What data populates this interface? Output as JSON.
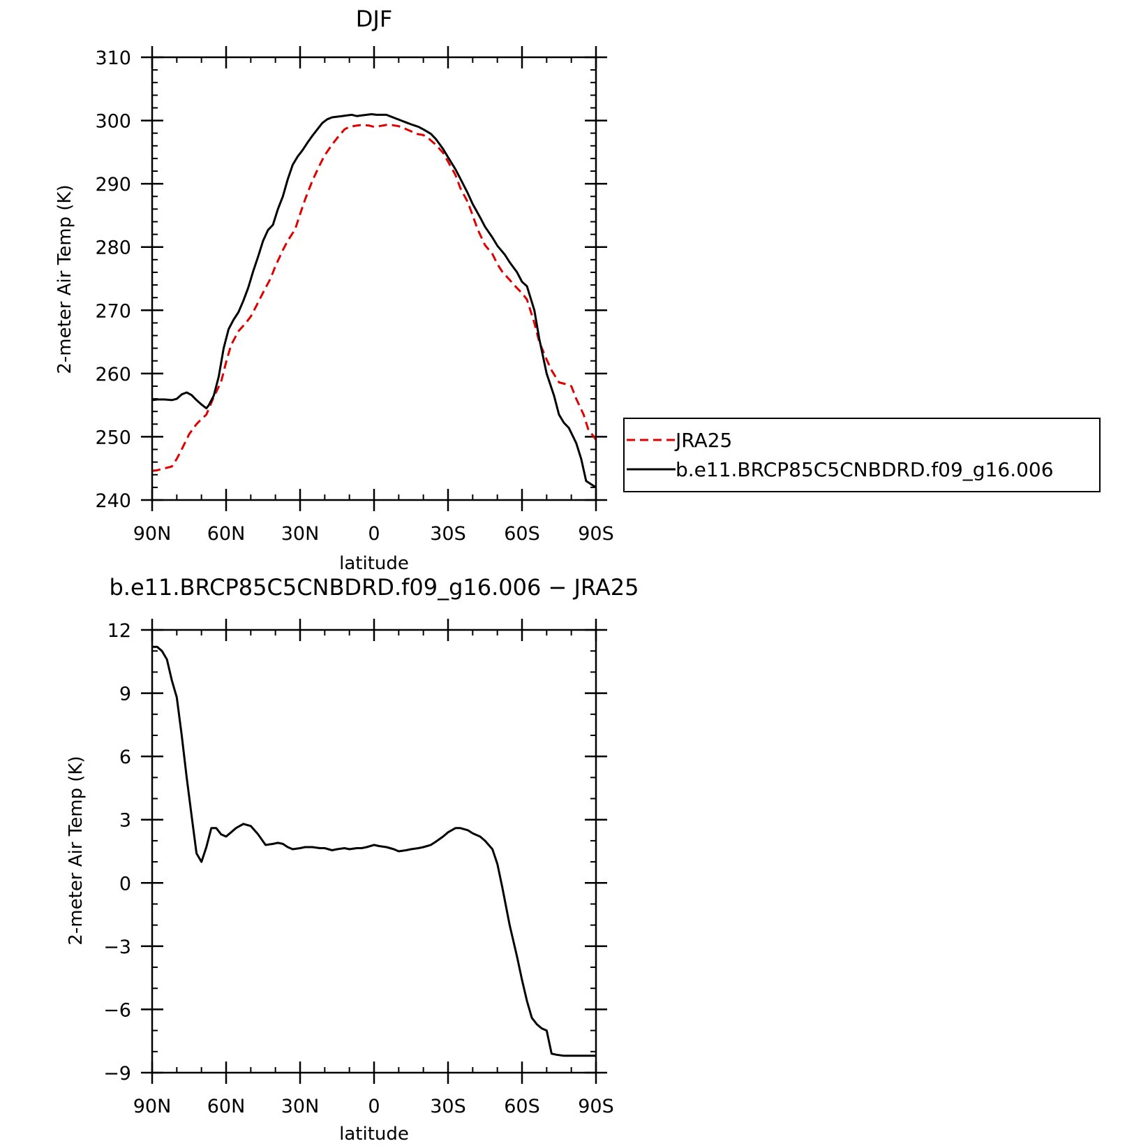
{
  "chart_data": [
    {
      "type": "line",
      "title": "DJF",
      "xlabel": "latitude",
      "ylabel": "2-meter Air Temp (K)",
      "x_tick_values": [
        90,
        60,
        30,
        0,
        -30,
        -60,
        -90
      ],
      "x_tick_labels": [
        "90N",
        "60N",
        "30N",
        "0",
        "30S",
        "60S",
        "90S"
      ],
      "xlim": [
        90,
        -90
      ],
      "ylim": [
        240,
        310
      ],
      "y_ticks": [
        240,
        250,
        260,
        270,
        280,
        290,
        300,
        310
      ],
      "y_tick_labels": [
        "240",
        "250",
        "260",
        "270",
        "280",
        "290",
        "300",
        "310"
      ],
      "grid": false,
      "legend_position": "right",
      "series": [
        {
          "name": "JRA25",
          "color": "#e00000",
          "dash": "dashed",
          "x": [
            90,
            88,
            85,
            82,
            80,
            78,
            75,
            72,
            70,
            68,
            65,
            62,
            60,
            58,
            55,
            52,
            50,
            48,
            45,
            42,
            40,
            37,
            35,
            32,
            30,
            28,
            25,
            22,
            20,
            17,
            15,
            12,
            10,
            7,
            5,
            2,
            0,
            -2,
            -5,
            -7,
            -10,
            -12,
            -15,
            -17,
            -20,
            -22,
            -25,
            -28,
            -30,
            -33,
            -35,
            -38,
            -40,
            -42,
            -45,
            -48,
            -50,
            -52,
            -55,
            -58,
            -60,
            -62,
            -65,
            -67,
            -70,
            -72,
            -75,
            -78,
            -80,
            -82,
            -85,
            -87,
            -89,
            -90
          ],
          "y": [
            244.6,
            244.7,
            245.0,
            245.3,
            246.5,
            248.0,
            250.4,
            252.0,
            252.8,
            253.5,
            256.3,
            258.7,
            261.8,
            264.5,
            266.7,
            268.0,
            269.0,
            270.5,
            272.8,
            275.0,
            277.0,
            279.5,
            281.0,
            282.8,
            285.2,
            287.5,
            290.5,
            293.0,
            294.5,
            296.2,
            297.2,
            298.6,
            299.0,
            299.2,
            299.3,
            299.2,
            299.0,
            299.1,
            299.3,
            299.3,
            299.1,
            298.8,
            298.3,
            297.9,
            297.7,
            297.2,
            296.2,
            294.9,
            293.5,
            291.4,
            289.3,
            287.1,
            285.0,
            282.8,
            280.3,
            278.9,
            277.3,
            276.1,
            274.8,
            273.5,
            272.7,
            271.7,
            268.0,
            265.0,
            262.2,
            260.5,
            258.6,
            258.3,
            258.0,
            256.0,
            253.5,
            251.0,
            250.1,
            249.5
          ]
        },
        {
          "name": "b.e11.BRCP85C5CNBDRD.f09_g16.006",
          "color": "#000000",
          "dash": "solid",
          "x": [
            90,
            88,
            85,
            82,
            80,
            78,
            76,
            74,
            72,
            70,
            68,
            67,
            65,
            63,
            61,
            59,
            57,
            55,
            53,
            51,
            49,
            47,
            45,
            43,
            41,
            39,
            37,
            35,
            33,
            31,
            29,
            27,
            25,
            23,
            21,
            19,
            17,
            15,
            13,
            11,
            9,
            7,
            5,
            3,
            1,
            -1,
            -3,
            -5,
            -7,
            -9,
            -11,
            -13,
            -15,
            -18,
            -20,
            -23,
            -25,
            -28,
            -30,
            -33,
            -35,
            -38,
            -40,
            -43,
            -45,
            -48,
            -50,
            -53,
            -55,
            -58,
            -60,
            -62,
            -65,
            -67,
            -70,
            -73,
            -75,
            -77,
            -79,
            -82,
            -84,
            -86,
            -88,
            -90
          ],
          "y": [
            255.8,
            255.9,
            255.9,
            255.8,
            256.0,
            256.7,
            257.0,
            256.6,
            255.8,
            255.1,
            254.5,
            255.0,
            256.5,
            259.5,
            264.0,
            267.0,
            268.5,
            269.7,
            271.5,
            273.6,
            276.2,
            278.5,
            281.0,
            282.7,
            283.5,
            286.0,
            288.0,
            290.7,
            293.0,
            294.3,
            295.3,
            296.5,
            297.6,
            298.6,
            299.6,
            300.2,
            300.5,
            300.6,
            300.7,
            300.8,
            300.9,
            300.7,
            300.8,
            300.9,
            301.0,
            300.9,
            300.9,
            300.9,
            300.6,
            300.3,
            300.0,
            299.7,
            299.4,
            299.0,
            298.6,
            297.9,
            297.1,
            295.5,
            294.2,
            292.3,
            290.8,
            288.5,
            286.8,
            284.7,
            283.2,
            281.5,
            280.2,
            278.8,
            277.6,
            276.0,
            274.5,
            273.8,
            270.0,
            265.5,
            260.0,
            256.5,
            253.5,
            252.2,
            251.4,
            249.0,
            246.5,
            243.0,
            242.5,
            242.0
          ]
        }
      ]
    },
    {
      "type": "line",
      "title": "b.e11.BRCP85C5CNBDRD.f09_g16.006 − JRA25",
      "xlabel": "latitude",
      "ylabel": "2-meter Air Temp (K)",
      "x_tick_values": [
        90,
        60,
        30,
        0,
        -30,
        -60,
        -90
      ],
      "x_tick_labels": [
        "90N",
        "60N",
        "30N",
        "0",
        "30S",
        "60S",
        "90S"
      ],
      "xlim": [
        90,
        -90
      ],
      "ylim": [
        -9,
        12
      ],
      "y_ticks": [
        -9,
        -6,
        -3,
        0,
        3,
        6,
        9,
        12
      ],
      "y_tick_labels": [
        "−9",
        "−6",
        "−3",
        "0",
        "3",
        "6",
        "9",
        "12"
      ],
      "grid": false,
      "series": [
        {
          "color": "#000000",
          "dash": "solid",
          "x": [
            90,
            88,
            86,
            84,
            82,
            80,
            78,
            76,
            74,
            72,
            70,
            68,
            66,
            64,
            62,
            60,
            58,
            56,
            53,
            50,
            47,
            44,
            41,
            39,
            37,
            35,
            33,
            30,
            28,
            25,
            22,
            20,
            17,
            15,
            12,
            10,
            7,
            5,
            3,
            0,
            -2,
            -5,
            -8,
            -10,
            -13,
            -15,
            -18,
            -20,
            -23,
            -25,
            -28,
            -30,
            -33,
            -35,
            -38,
            -40,
            -43,
            -45,
            -48,
            -50,
            -52,
            -55,
            -58,
            -60,
            -62,
            -64,
            -66,
            -68,
            -70,
            -72,
            -74,
            -77,
            -79,
            -81,
            -83,
            -85,
            -87,
            -89,
            -90
          ],
          "y": [
            11.2,
            11.2,
            11.0,
            10.6,
            9.6,
            8.8,
            7.0,
            5.0,
            3.2,
            1.4,
            1.0,
            1.7,
            2.6,
            2.6,
            2.3,
            2.2,
            2.4,
            2.6,
            2.8,
            2.7,
            2.3,
            1.8,
            1.85,
            1.9,
            1.85,
            1.7,
            1.6,
            1.65,
            1.7,
            1.7,
            1.65,
            1.65,
            1.55,
            1.6,
            1.65,
            1.6,
            1.65,
            1.65,
            1.7,
            1.8,
            1.75,
            1.7,
            1.6,
            1.5,
            1.55,
            1.6,
            1.65,
            1.7,
            1.8,
            1.95,
            2.2,
            2.4,
            2.6,
            2.6,
            2.5,
            2.35,
            2.2,
            2.0,
            1.6,
            0.9,
            -0.2,
            -2.0,
            -3.5,
            -4.6,
            -5.6,
            -6.4,
            -6.7,
            -6.9,
            -7.0,
            -8.1,
            -8.15,
            -8.2,
            -8.2,
            -8.2,
            -8.2,
            -8.2,
            -8.2,
            -8.2,
            -8.2
          ]
        }
      ]
    }
  ]
}
